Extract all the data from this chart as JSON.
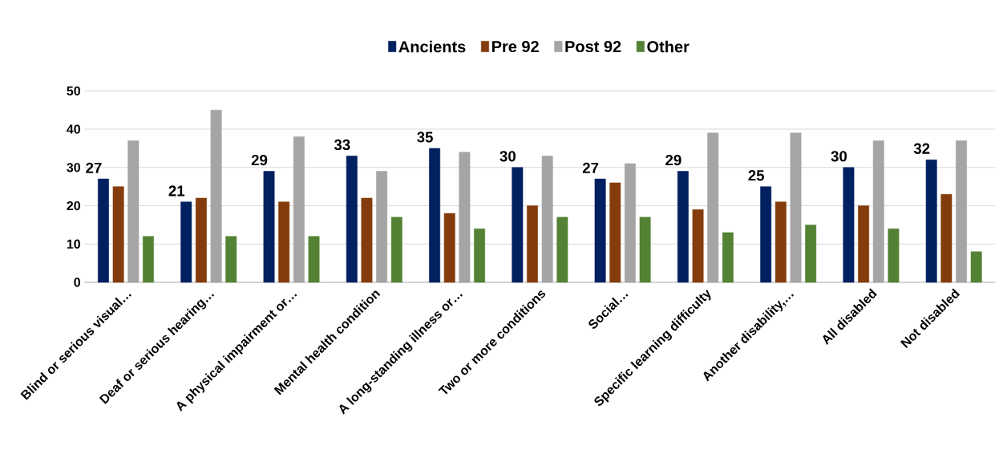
{
  "chart_data": {
    "type": "bar",
    "categories": [
      "Blind or serious visual…",
      "Deaf or serious hearing…",
      "A physical impairment or…",
      "Mental health condition",
      "A long-standing illness or…",
      "Two or more conditions",
      "Social…",
      "Specific learning difficulty",
      "Another disability,…",
      "All disabled",
      "Not disabled"
    ],
    "series": [
      {
        "name": "Ancients",
        "color": "#002060",
        "values": [
          27,
          21,
          29,
          33,
          35,
          30,
          27,
          29,
          25,
          30,
          32
        ],
        "value_labels": [
          "27",
          "21",
          "29",
          "33",
          "35",
          "30",
          "27",
          "29",
          "25",
          "30",
          "32"
        ]
      },
      {
        "name": "Pre 92",
        "color": "#843c0c",
        "values": [
          25,
          22,
          21,
          22,
          18,
          20,
          26,
          19,
          21,
          20,
          23
        ]
      },
      {
        "name": "Post 92",
        "color": "#a5a5a5",
        "values": [
          37,
          45,
          38,
          29,
          34,
          33,
          31,
          39,
          39,
          37,
          37
        ]
      },
      {
        "name": "Other",
        "color": "#548235",
        "values": [
          12,
          12,
          12,
          17,
          14,
          17,
          17,
          13,
          15,
          14,
          8
        ]
      }
    ],
    "ylim": [
      0,
      50
    ],
    "yticks": [
      0,
      10,
      20,
      30,
      40,
      50
    ],
    "grid": "y",
    "legend": "top"
  }
}
